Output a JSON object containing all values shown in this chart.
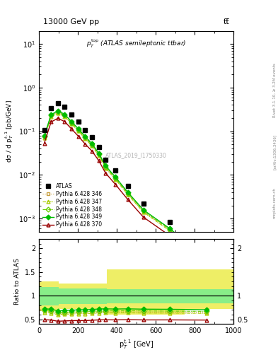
{
  "title_top": "13000 GeV pp",
  "title_right": "tt̅",
  "subplot_title": "$p_T^{\\mathrm{top}}$ (ATLAS semileptonic ttbar)",
  "watermark": "ATLAS_2019_I1750330",
  "right_label1": "Rivet 3.1.10, ≥ 3.2M events",
  "right_label2": "[arXiv:1306.3436]",
  "right_label3": "mcplots.cern.ch",
  "ylabel_main": "dσ / d p$_T^{t,1}$ [pb/GeV]",
  "ylabel_ratio": "Ratio to ATLAS",
  "xlabel": "p$_T^{t,1}$ [GeV]",
  "ylim_main_lo": 0.0005,
  "ylim_main_hi": 20,
  "ylim_ratio_lo": 0.4,
  "ylim_ratio_hi": 2.2,
  "xlim_lo": 0,
  "xlim_hi": 1000,
  "atlas_x": [
    27.5,
    62.5,
    97.5,
    132.5,
    167.5,
    202.5,
    237.5,
    272.5,
    307.5,
    342.5,
    392.5,
    457.5,
    537.5,
    672.5,
    862.5
  ],
  "atlas_y": [
    0.108,
    0.337,
    0.432,
    0.357,
    0.24,
    0.163,
    0.108,
    0.0735,
    0.0435,
    0.0225,
    0.0125,
    0.0055,
    0.0022,
    0.00083,
    0.000165
  ],
  "pythia_x": [
    27.5,
    62.5,
    97.5,
    132.5,
    167.5,
    202.5,
    237.5,
    272.5,
    307.5,
    342.5,
    392.5,
    457.5,
    537.5,
    672.5,
    862.5
  ],
  "p346_y": [
    0.073,
    0.22,
    0.268,
    0.224,
    0.152,
    0.104,
    0.069,
    0.0474,
    0.0284,
    0.0148,
    0.00818,
    0.00362,
    0.00144,
    0.00054,
    0.000107
  ],
  "p347_y": [
    0.07,
    0.212,
    0.259,
    0.217,
    0.147,
    0.101,
    0.067,
    0.0459,
    0.0276,
    0.0143,
    0.00793,
    0.0035,
    0.00139,
    0.000523,
    0.000103
  ],
  "p348_y": [
    0.075,
    0.228,
    0.278,
    0.232,
    0.157,
    0.108,
    0.072,
    0.0492,
    0.0295,
    0.0153,
    0.00848,
    0.00374,
    0.00149,
    0.000558,
    0.00011
  ],
  "p349_y": [
    0.078,
    0.24,
    0.293,
    0.245,
    0.166,
    0.114,
    0.076,
    0.0519,
    0.0312,
    0.0162,
    0.00896,
    0.00396,
    0.00157,
    0.00059,
    0.000116
  ],
  "p370_y": [
    0.053,
    0.163,
    0.198,
    0.166,
    0.113,
    0.077,
    0.051,
    0.0352,
    0.0212,
    0.011,
    0.00609,
    0.0027,
    0.00107,
    0.000404,
    7.97e-05
  ],
  "yellow_band_edges": [
    0,
    100,
    350,
    750,
    1000
  ],
  "yellow_band_lo": [
    0.67,
    0.72,
    0.6,
    0.72,
    0.72
  ],
  "yellow_band_hi": [
    1.3,
    1.25,
    1.55,
    1.55,
    1.55
  ],
  "green_band_edges": [
    0,
    100,
    350,
    750,
    1000
  ],
  "green_band_lo": [
    0.8,
    0.82,
    0.83,
    0.83,
    0.83
  ],
  "green_band_hi": [
    1.18,
    1.15,
    1.14,
    1.14,
    1.14
  ],
  "color_346": "#c8a040",
  "color_347": "#aacc00",
  "color_348": "#66cc00",
  "color_349": "#00bb00",
  "color_370": "#990000",
  "color_atlas": "#000000",
  "green_band_color": "#88ee88",
  "yellow_band_color": "#eeee66"
}
